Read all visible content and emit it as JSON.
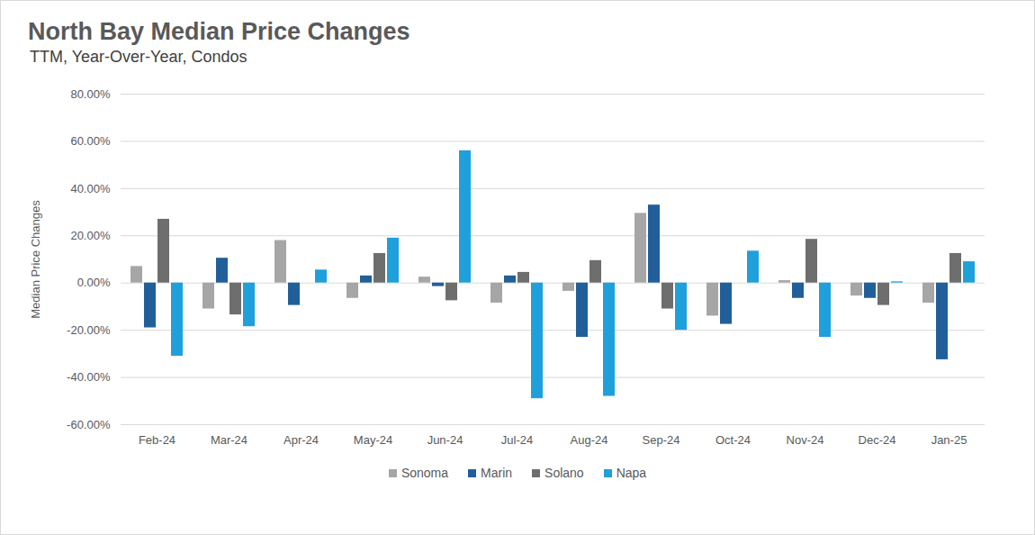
{
  "chart_data": {
    "type": "bar",
    "title": "North Bay Median Price Changes",
    "subtitle": "TTM, Year-Over-Year, Condos",
    "y_label": "Median Price Changes",
    "categories": [
      "Feb-24",
      "Mar-24",
      "Apr-24",
      "May-24",
      "Jun-24",
      "Jul-24",
      "Aug-24",
      "Sep-24",
      "Oct-24",
      "Nov-24",
      "Dec-24",
      "Jan-25"
    ],
    "series": [
      {
        "name": "Sonoma",
        "color": "#a6a6a6",
        "values": [
          7,
          -11,
          18,
          -6.5,
          2.5,
          -8.5,
          -3.5,
          29.5,
          -14,
          1,
          -5.5,
          -8.5
        ]
      },
      {
        "name": "Marin",
        "color": "#215f9a",
        "values": [
          -19,
          10.5,
          -9.5,
          3,
          -1.5,
          3,
          -23,
          33,
          -17.5,
          -6.5,
          -6.5,
          -32.5
        ]
      },
      {
        "name": "Solano",
        "color": "#6e6e6e",
        "values": [
          27,
          -13.5,
          0,
          12.5,
          -7.5,
          4.5,
          9.5,
          -11,
          0,
          18.5,
          -9.5,
          12.5
        ]
      },
      {
        "name": "Napa",
        "color": "#1fa0db",
        "values": [
          -31,
          -18.5,
          5.5,
          19,
          56,
          -49,
          -48,
          -20,
          13.5,
          -23,
          0.5,
          9
        ]
      }
    ],
    "ylim": [
      -60,
      80
    ],
    "yticks": [
      {
        "value": -60,
        "label": "-60.00%"
      },
      {
        "value": -40,
        "label": "-40.00%"
      },
      {
        "value": -20,
        "label": "-20.00%"
      },
      {
        "value": 0,
        "label": "0.00%"
      },
      {
        "value": 20,
        "label": "20.00%"
      },
      {
        "value": 40,
        "label": "40.00%"
      },
      {
        "value": 60,
        "label": "60.00%"
      },
      {
        "value": 80,
        "label": "80.00%"
      }
    ],
    "grid": true,
    "legend": "bottom"
  }
}
